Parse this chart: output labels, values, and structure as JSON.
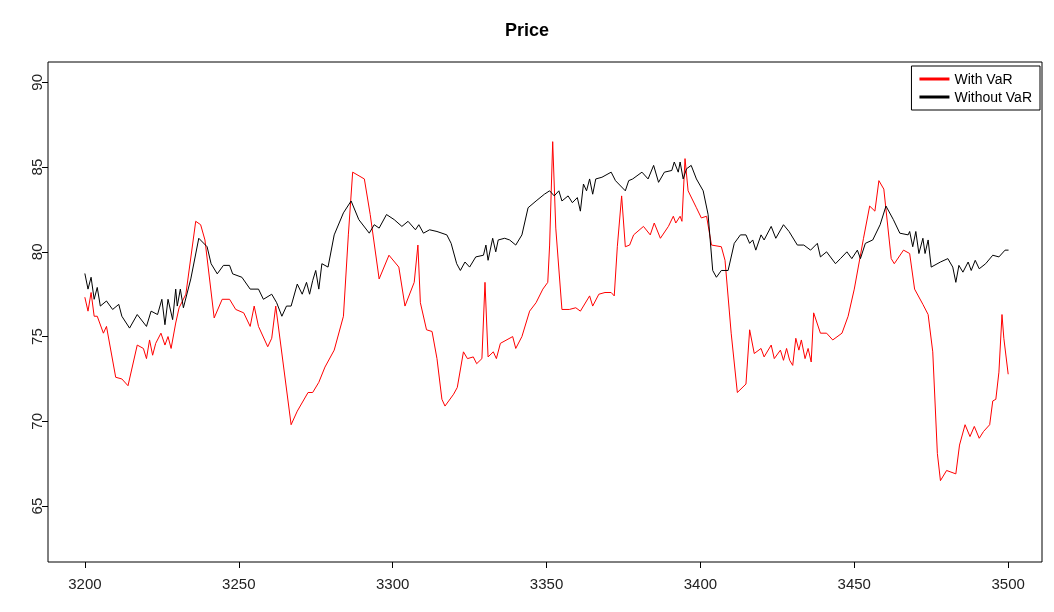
{
  "chart_data": {
    "type": "line",
    "title": "Price",
    "xlim": [
      3188,
      3511
    ],
    "xticks": [
      3200,
      3250,
      3300,
      3350,
      3400,
      3450,
      3500
    ],
    "ylim": [
      61.7,
      91.2
    ],
    "yticks": [
      65,
      70,
      75,
      80,
      85,
      90
    ],
    "grid": false,
    "legend": "top right",
    "marker": "none",
    "line_style": "solid",
    "series": [
      {
        "name": "With VaR",
        "color": "#ff0000",
        "x": [
          3200,
          3201,
          3202,
          3203,
          3204,
          3206,
          3207,
          3210,
          3212,
          3214,
          3217,
          3219,
          3220,
          3221,
          3222,
          3223,
          3224.7,
          3226,
          3227,
          3228,
          3229.5,
          3230.6,
          3232.8,
          3236,
          3237.6,
          3239,
          3242,
          3244.6,
          3247,
          3249,
          3251.6,
          3253.7,
          3255,
          3256.4,
          3259.4,
          3260.7,
          3262,
          3267,
          3269,
          3272.5,
          3274,
          3276,
          3278,
          3281,
          3284,
          3285.6,
          3287,
          3290.8,
          3292.7,
          3295.6,
          3298.8,
          3302,
          3304,
          3307,
          3308.2,
          3309,
          3311,
          3312.8,
          3314.4,
          3316,
          3317,
          3319.8,
          3321,
          3323,
          3324.3,
          3326.2,
          3327.3,
          3329,
          3330,
          3331,
          3332.7,
          3333.7,
          3335,
          3339,
          3340,
          3342,
          3344.5,
          3346.6,
          3348.8,
          3350.4,
          3351,
          3352,
          3353,
          3355,
          3357.4,
          3359.5,
          3361,
          3364,
          3365,
          3367,
          3369,
          3371,
          3372,
          3373,
          3374.4,
          3375.6,
          3377,
          3378.3,
          3381.5,
          3383.7,
          3385,
          3387,
          3389.6,
          3391.2,
          3392,
          3393.4,
          3394,
          3395,
          3396,
          3398.7,
          3400.3,
          3402,
          3403.6,
          3406.8,
          3408,
          3410,
          3412,
          3414.8,
          3416,
          3417.5,
          3419.7,
          3420.7,
          3423,
          3424,
          3426,
          3427,
          3428,
          3429,
          3430,
          3431,
          3432,
          3432.8,
          3434,
          3435,
          3436,
          3436.8,
          3439,
          3441,
          3443,
          3446,
          3448,
          3450,
          3453,
          3455,
          3456.7,
          3458,
          3459.6,
          3462,
          3463,
          3466,
          3468,
          3469.6,
          3472.3,
          3474,
          3475.5,
          3477,
          3478,
          3480,
          3483,
          3484.2,
          3486,
          3487.6,
          3489,
          3490.6,
          3492,
          3494,
          3495,
          3496,
          3497,
          3498,
          3498.6,
          3500
        ],
        "values": [
          77.3,
          76.5,
          77.6,
          76.2,
          76.2,
          75.2,
          75.6,
          72.6,
          72.5,
          72.1,
          74.5,
          74.3,
          73.7,
          74.8,
          73.9,
          74.6,
          75.2,
          74.5,
          75.0,
          74.3,
          75.8,
          76.7,
          77.5,
          81.8,
          81.6,
          80.7,
          76.1,
          77.2,
          77.2,
          76.6,
          76.4,
          75.6,
          76.8,
          75.6,
          74.4,
          74.9,
          76.8,
          69.8,
          70.6,
          71.7,
          71.7,
          72.3,
          73.2,
          74.2,
          76.2,
          81.0,
          84.7,
          84.3,
          82.2,
          78.4,
          79.8,
          79.1,
          76.8,
          78.2,
          80.4,
          77.0,
          75.4,
          75.3,
          73.7,
          71.3,
          70.9,
          71.6,
          72.0,
          74.1,
          73.7,
          73.8,
          73.4,
          73.7,
          78.2,
          73.8,
          74.1,
          73.7,
          74.6,
          75.0,
          74.3,
          75.0,
          76.5,
          77.0,
          77.8,
          78.2,
          80.4,
          86.5,
          81.4,
          76.6,
          76.6,
          76.7,
          76.5,
          77.4,
          76.8,
          77.5,
          77.6,
          77.6,
          77.4,
          80.3,
          83.3,
          80.3,
          80.4,
          81.0,
          81.5,
          81.0,
          81.7,
          80.8,
          81.5,
          82.1,
          81.7,
          82.1,
          81.8,
          85.5,
          83.6,
          82.6,
          82.0,
          82.1,
          80.4,
          80.3,
          79.5,
          75.2,
          71.7,
          72.2,
          75.4,
          74.0,
          74.3,
          73.8,
          74.5,
          73.7,
          74.2,
          73.6,
          74.3,
          73.6,
          73.3,
          74.9,
          74.2,
          74.8,
          73.7,
          74.3,
          73.5,
          76.4,
          75.2,
          75.2,
          74.8,
          75.2,
          76.2,
          77.8,
          80.8,
          82.7,
          82.4,
          84.2,
          83.7,
          79.6,
          79.3,
          80.1,
          79.9,
          77.8,
          76.9,
          76.3,
          74.1,
          68.1,
          66.5,
          67.1,
          66.9,
          68.6,
          69.8,
          69.1,
          69.7,
          69.0,
          69.4,
          69.8,
          71.2,
          71.3,
          72.9,
          76.3,
          74.9,
          72.8
        ]
      },
      {
        "name": "Without VaR",
        "color": "#000000",
        "x": [
          3200,
          3201,
          3202,
          3203,
          3204,
          3205,
          3207,
          3209,
          3211,
          3212,
          3214.5,
          3217,
          3220,
          3221.5,
          3223.6,
          3225,
          3226,
          3227,
          3228.5,
          3229.5,
          3230,
          3231,
          3232,
          3234.4,
          3237,
          3239.7,
          3241,
          3243,
          3245,
          3247,
          3248,
          3251,
          3253.7,
          3256.4,
          3258,
          3260.7,
          3262.3,
          3264,
          3265.5,
          3267,
          3269,
          3270.6,
          3272,
          3273,
          3274,
          3275,
          3276,
          3277,
          3279,
          3281,
          3284,
          3286.5,
          3289,
          3292.4,
          3294,
          3295.6,
          3298,
          3300.5,
          3303,
          3305,
          3307.4,
          3308.5,
          3310,
          3312,
          3314.4,
          3317.6,
          3319,
          3320.8,
          3322,
          3323.5,
          3325,
          3327,
          3329.5,
          3330.3,
          3331,
          3332.5,
          3333.5,
          3334.3,
          3336.4,
          3338,
          3340,
          3342,
          3344,
          3346.6,
          3349.3,
          3351,
          3352.5,
          3354,
          3355,
          3357,
          3358.4,
          3360,
          3361,
          3362,
          3363,
          3364,
          3365,
          3366,
          3368,
          3371,
          3372.4,
          3375.6,
          3376.7,
          3378,
          3381,
          3383,
          3384.8,
          3386.4,
          3388.3,
          3390.7,
          3391.5,
          3392.8,
          3393.4,
          3394.4,
          3395.5,
          3397,
          3398.7,
          3400.9,
          3402.5,
          3404,
          3405.2,
          3406.8,
          3409,
          3411,
          3413,
          3414.8,
          3416,
          3417,
          3418,
          3419.7,
          3420.7,
          3423,
          3424.5,
          3427,
          3428.8,
          3431.5,
          3433.6,
          3435.8,
          3438,
          3439,
          3441,
          3443.9,
          3445.5,
          3447.6,
          3449.2,
          3451,
          3452,
          3453.6,
          3456,
          3458.4,
          3460.3,
          3462.7,
          3464.8,
          3467.5,
          3468,
          3469,
          3470,
          3471,
          3472.3,
          3473,
          3474,
          3475,
          3478,
          3480.4,
          3482,
          3483,
          3484,
          3485.3,
          3487,
          3488,
          3489.3,
          3490.6,
          3492.7,
          3495,
          3497,
          3499,
          3500
        ],
        "values": [
          78.7,
          77.8,
          78.5,
          77.2,
          77.9,
          76.8,
          77.1,
          76.6,
          76.9,
          76.2,
          75.5,
          76.3,
          75.6,
          76.5,
          76.3,
          77.2,
          75.7,
          77.2,
          76.0,
          77.8,
          76.8,
          77.8,
          76.7,
          78.4,
          80.8,
          80.3,
          79.3,
          78.7,
          79.2,
          79.2,
          78.7,
          78.5,
          77.8,
          77.8,
          77.2,
          77.5,
          77.0,
          76.2,
          76.8,
          76.8,
          78.1,
          77.5,
          78.2,
          77.5,
          78.3,
          78.9,
          77.8,
          79.3,
          79.1,
          81.0,
          82.3,
          83.0,
          81.9,
          81.1,
          81.6,
          81.4,
          82.2,
          81.9,
          81.5,
          81.8,
          81.3,
          81.6,
          81.1,
          81.3,
          81.2,
          81.0,
          80.5,
          79.3,
          78.9,
          79.4,
          79.1,
          79.7,
          79.8,
          80.4,
          79.5,
          80.8,
          80.0,
          80.7,
          80.8,
          80.7,
          80.4,
          81.0,
          82.6,
          83.0,
          83.4,
          83.6,
          83.3,
          83.6,
          83.0,
          83.3,
          82.9,
          83.2,
          82.4,
          84.0,
          83.6,
          84.3,
          83.4,
          84.3,
          84.4,
          84.7,
          84.2,
          83.6,
          84.2,
          84.3,
          84.7,
          84.3,
          85.1,
          84.1,
          84.7,
          84.8,
          85.3,
          84.7,
          85.3,
          84.3,
          84.9,
          85.1,
          84.3,
          83.6,
          82.2,
          78.9,
          78.5,
          78.9,
          78.9,
          80.5,
          81.0,
          81.0,
          80.5,
          80.7,
          80.1,
          81.0,
          80.7,
          81.5,
          80.8,
          81.6,
          81.2,
          80.4,
          80.4,
          80.1,
          80.5,
          79.7,
          80.0,
          79.3,
          79.6,
          80.0,
          79.6,
          80.1,
          79.6,
          80.5,
          80.7,
          81.6,
          82.7,
          81.9,
          81.1,
          81.0,
          81.2,
          80.3,
          81.2,
          79.9,
          80.8,
          79.9,
          80.7,
          79.1,
          79.4,
          79.6,
          79.1,
          78.2,
          79.2,
          78.8,
          79.4,
          78.9,
          79.5,
          79.0,
          79.3,
          79.8,
          79.7,
          80.1,
          80.1
        ]
      }
    ]
  }
}
